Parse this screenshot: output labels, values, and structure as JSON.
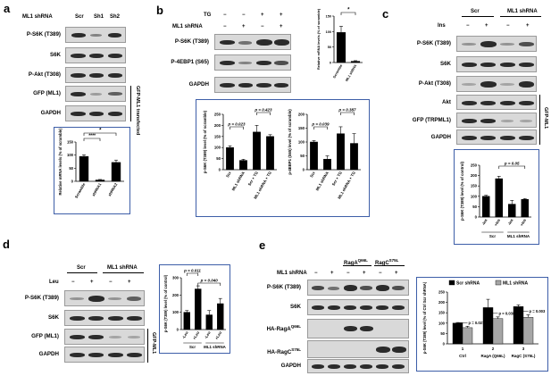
{
  "a": {
    "label": "a",
    "shrna_label": "ML1 shRNA",
    "cols": [
      "Scr",
      "Sh1",
      "Sh2"
    ],
    "rows": [
      "P-S6K (T389)",
      "S6K",
      "P-Akt (T308)",
      "GFP (ML1)",
      "GAPDH"
    ],
    "side_label": "GFP-ML1 transfected",
    "chart_data": {
      "type": "bar",
      "categories": [
        "Scramble",
        "shRNA1",
        "shRNA2"
      ],
      "values": [
        95,
        5,
        72
      ],
      "errors": [
        6,
        2,
        9
      ],
      "ylabel": "Relative mRNA levels (% of scramble)",
      "ylim": [
        0,
        150
      ],
      "yticks": [
        0,
        50,
        100,
        150
      ],
      "significance": [
        "****",
        "*"
      ]
    }
  },
  "b": {
    "label": "b",
    "tg_label": "TG",
    "shrna_label": "ML1 shRNA",
    "tg_signs": [
      "−",
      "−",
      "+",
      "+"
    ],
    "shrna_signs": [
      "−",
      "+",
      "−",
      "+"
    ],
    "rows": [
      "P-S6K (T389)",
      "P-4EBP1 (S65)",
      "GAPDH"
    ],
    "chart_mrna": {
      "type": "bar",
      "categories": [
        "Scramble",
        "ML1 shRNA"
      ],
      "values": [
        97,
        4
      ],
      "errors": [
        20,
        2
      ],
      "ylabel": "Relative mRNA levels (% of scramble)",
      "ylim": [
        0,
        150
      ],
      "yticks": [
        0,
        50,
        100,
        150
      ],
      "significance": "*"
    },
    "chart_s6k": {
      "type": "bar",
      "categories": [
        "Scr",
        "ML1 shRNA",
        "Scr + TG",
        "ML1 shRNA + TG"
      ],
      "values": [
        100,
        42,
        170,
        150
      ],
      "errors": [
        8,
        5,
        30,
        8
      ],
      "ylabel": "p-S6K (T389) level (% of scramble)",
      "ylim": [
        0,
        250
      ],
      "yticks": [
        0,
        50,
        100,
        150,
        200,
        250
      ],
      "p_values": [
        "p = 0.023",
        "p = 0.423"
      ]
    },
    "chart_4ebp1": {
      "type": "bar",
      "categories": [
        "Scr",
        "ML1 shRNA",
        "Scr + TG",
        "ML1 shRNA + TG"
      ],
      "values": [
        100,
        38,
        130,
        95
      ],
      "errors": [
        5,
        12,
        25,
        35
      ],
      "ylabel": "p-4EBP1 (S65) level (% of scramble)",
      "ylim": [
        0,
        200
      ],
      "yticks": [
        0,
        50,
        100,
        150,
        200
      ],
      "p_values": [
        "p = 0.039",
        "p = 0.387"
      ]
    }
  },
  "c": {
    "label": "c",
    "groups": [
      "Scr",
      "ML1 shRNA"
    ],
    "ins_label": "Ins",
    "ins_signs": [
      "−",
      "+",
      "−",
      "+"
    ],
    "rows": [
      "P-S6K (T389)",
      "S6K",
      "P-Akt (T308)",
      "Akt",
      "GFP (TRPML1)",
      "GAPDH"
    ],
    "side_label": "GFP-ML1",
    "chart_data": {
      "type": "bar",
      "categories": [
        "-Ins",
        "+Ins",
        "-Ins",
        "+Ins"
      ],
      "group_labels": [
        "Scr",
        "ML1 shRNA"
      ],
      "values": [
        100,
        185,
        62,
        85
      ],
      "errors": [
        5,
        12,
        18,
        4
      ],
      "ylabel": "p-S6K (T389) level (% of control)",
      "ylim": [
        0,
        250
      ],
      "yticks": [
        0,
        50,
        100,
        150,
        200,
        250
      ],
      "p_values": [
        "p = 0.05"
      ]
    }
  },
  "d": {
    "label": "d",
    "groups": [
      "Scr",
      "ML1 shRNA"
    ],
    "leu_label": "Leu",
    "leu_signs": [
      "−",
      "+",
      "−",
      "+"
    ],
    "rows": [
      "P-S6K (T389)",
      "S6K",
      "GFP (ML1)",
      "GAPDH"
    ],
    "side_label": "GFP-ML1",
    "chart_data": {
      "type": "bar",
      "categories": [
        "-Leu",
        "+Leu",
        "-Leu",
        "+Leu"
      ],
      "group_labels": [
        "Scr",
        "ML1 shRNA"
      ],
      "values": [
        100,
        235,
        85,
        150
      ],
      "errors": [
        10,
        18,
        25,
        30
      ],
      "ylabel": "p-S6K (T389) level (% of control)",
      "ylim": [
        0,
        300
      ],
      "yticks": [
        0,
        100,
        200,
        300
      ],
      "p_values": [
        "p = 0.011",
        "p = 0.040"
      ]
    }
  },
  "e": {
    "label": "e",
    "shrna_label": "ML1 shRNA",
    "shrna_signs": [
      "−",
      "+",
      "−",
      "+",
      "−",
      "+"
    ],
    "groups": [
      "RagA",
      "RagC"
    ],
    "groups_sup": [
      "Q66L",
      "S75L"
    ],
    "rows": [
      "P-S6K (T389)",
      "S6K",
      "HA-RagA",
      "HA-RagC",
      "GAPDH"
    ],
    "rows_sup": [
      "",
      "",
      "Q66L",
      "S75L",
      ""
    ],
    "chart_data": {
      "type": "bar",
      "categories": [
        "Ctrl",
        "RagA (Q66L)",
        "RagC (S75L)"
      ],
      "series": [
        {
          "name": "Scr shRNA",
          "values": [
            100,
            175,
            180
          ],
          "errors": [
            3,
            40,
            8
          ]
        },
        {
          "name": "ML1 shRNA",
          "values": [
            78,
            122,
            128
          ],
          "errors": [
            7,
            8,
            12
          ]
        }
      ],
      "xticks": [
        "1",
        "2",
        "3"
      ],
      "ylabel": "p-S6K (T389) level (% of Ctrl Scr shRNA)",
      "ylim": [
        0,
        250
      ],
      "yticks": [
        0,
        50,
        100,
        150,
        200,
        250
      ],
      "p_values": [
        "p = 0.027",
        "p = 0.038",
        "p = 0.003"
      ],
      "legend_position": "top"
    }
  }
}
